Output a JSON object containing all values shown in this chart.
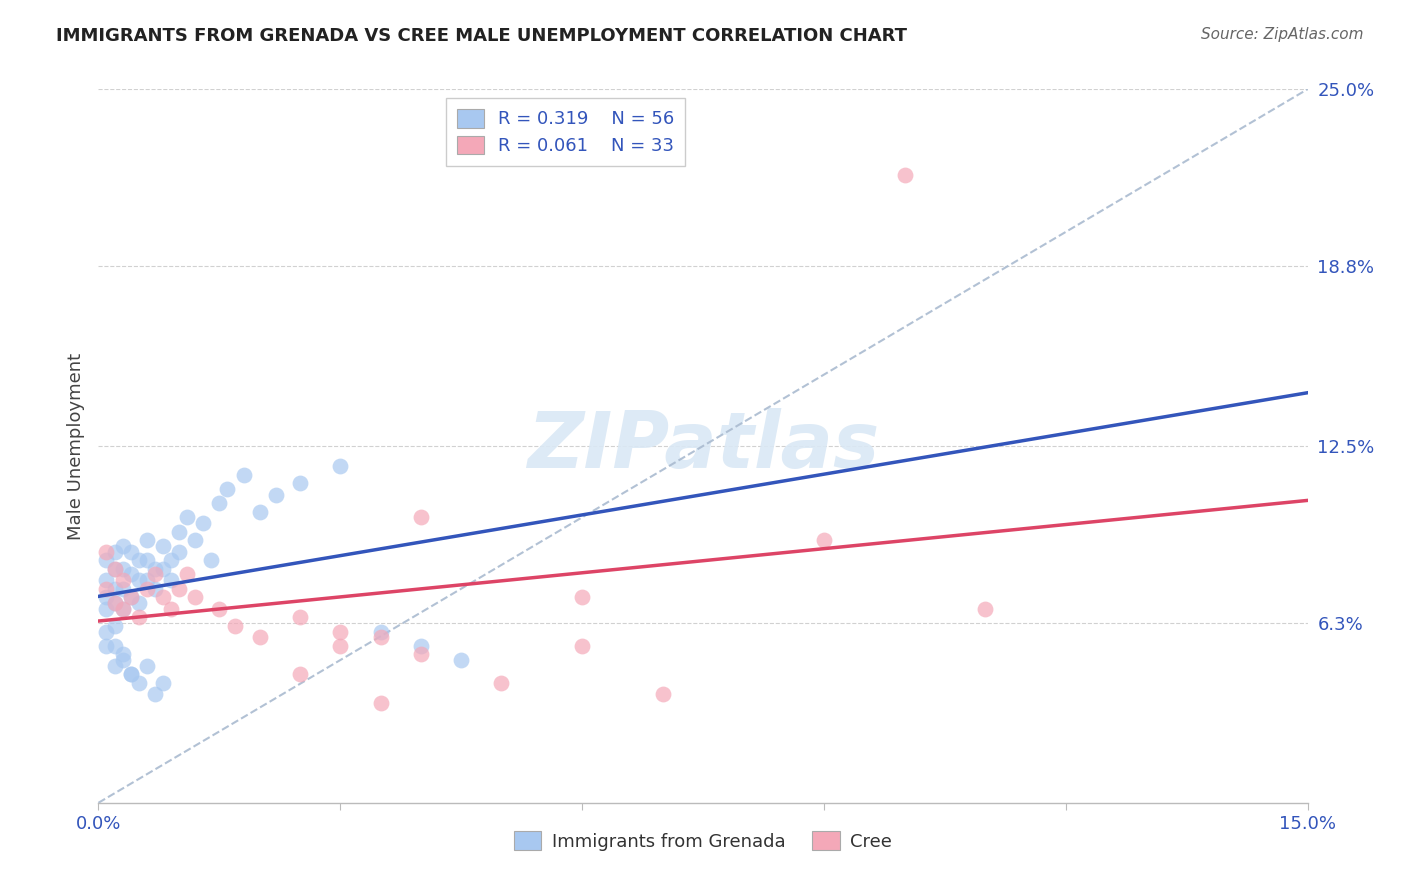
{
  "title": "IMMIGRANTS FROM GRENADA VS CREE MALE UNEMPLOYMENT CORRELATION CHART",
  "source": "Source: ZipAtlas.com",
  "ylabel": "Male Unemployment",
  "xlim": [
    0.0,
    0.15
  ],
  "ylim": [
    0.0,
    0.25
  ],
  "xtick_positions": [
    0.0,
    0.03,
    0.06,
    0.09,
    0.12,
    0.15
  ],
  "xticklabels": [
    "0.0%",
    "",
    "",
    "",
    "",
    "15.0%"
  ],
  "ytick_positions": [
    0.063,
    0.125,
    0.188,
    0.25
  ],
  "ytick_labels": [
    "6.3%",
    "12.5%",
    "18.8%",
    "25.0%"
  ],
  "grid_color": "#cccccc",
  "background_color": "#ffffff",
  "blue_color": "#A8C8F0",
  "pink_color": "#F4A8B8",
  "blue_line_color": "#3355BB",
  "pink_line_color": "#DD4466",
  "ref_line_color": "#AABBD0",
  "text_color": "#3355BB",
  "title_color": "#222222",
  "source_color": "#666666",
  "ylabel_color": "#444444",
  "legend_label1": "Immigrants from Grenada",
  "legend_label2": "Cree",
  "legend_R1": "R = 0.319",
  "legend_N1": "N = 56",
  "legend_R2": "R = 0.061",
  "legend_N2": "N = 33",
  "watermark": "ZIPatlas",
  "blue_x": [
    0.001,
    0.001,
    0.001,
    0.001,
    0.002,
    0.002,
    0.002,
    0.002,
    0.002,
    0.003,
    0.003,
    0.003,
    0.003,
    0.004,
    0.004,
    0.004,
    0.005,
    0.005,
    0.005,
    0.006,
    0.006,
    0.006,
    0.007,
    0.007,
    0.008,
    0.008,
    0.009,
    0.009,
    0.01,
    0.01,
    0.011,
    0.012,
    0.013,
    0.014,
    0.015,
    0.016,
    0.018,
    0.02,
    0.022,
    0.025,
    0.03,
    0.001,
    0.002,
    0.003,
    0.004,
    0.005,
    0.006,
    0.007,
    0.008,
    0.035,
    0.04,
    0.045,
    0.001,
    0.002,
    0.003,
    0.004
  ],
  "blue_y": [
    0.085,
    0.078,
    0.072,
    0.068,
    0.088,
    0.082,
    0.075,
    0.07,
    0.062,
    0.09,
    0.082,
    0.075,
    0.068,
    0.088,
    0.08,
    0.072,
    0.085,
    0.078,
    0.07,
    0.092,
    0.085,
    0.078,
    0.082,
    0.075,
    0.09,
    0.082,
    0.085,
    0.078,
    0.095,
    0.088,
    0.1,
    0.092,
    0.098,
    0.085,
    0.105,
    0.11,
    0.115,
    0.102,
    0.108,
    0.112,
    0.118,
    0.055,
    0.048,
    0.052,
    0.045,
    0.042,
    0.048,
    0.038,
    0.042,
    0.06,
    0.055,
    0.05,
    0.06,
    0.055,
    0.05,
    0.045
  ],
  "pink_x": [
    0.001,
    0.001,
    0.002,
    0.002,
    0.003,
    0.003,
    0.004,
    0.005,
    0.006,
    0.007,
    0.008,
    0.009,
    0.01,
    0.011,
    0.012,
    0.015,
    0.017,
    0.02,
    0.025,
    0.03,
    0.035,
    0.04,
    0.05,
    0.06,
    0.07,
    0.04,
    0.06,
    0.09,
    0.1,
    0.11,
    0.025,
    0.035,
    0.03
  ],
  "pink_y": [
    0.088,
    0.075,
    0.082,
    0.07,
    0.078,
    0.068,
    0.072,
    0.065,
    0.075,
    0.08,
    0.072,
    0.068,
    0.075,
    0.08,
    0.072,
    0.068,
    0.062,
    0.058,
    0.065,
    0.06,
    0.058,
    0.052,
    0.042,
    0.055,
    0.038,
    0.1,
    0.072,
    0.092,
    0.22,
    0.068,
    0.045,
    0.035,
    0.055
  ]
}
